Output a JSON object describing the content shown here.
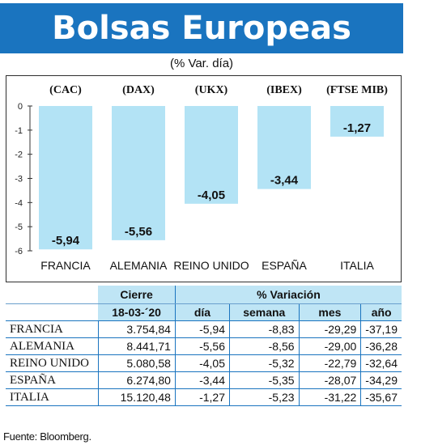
{
  "title": "Bolsas Europeas",
  "subtitle": "(% Var. día)",
  "chart_data": {
    "type": "bar",
    "categories": [
      "FRANCIA",
      "ALEMANIA",
      "REINO UNIDO",
      "ESPAÑA",
      "ITALIA"
    ],
    "index_labels": [
      "(CAC)",
      "(DAX)",
      "(UKX)",
      "(IBEX)",
      "(FTSE MIB)"
    ],
    "values": [
      -5.94,
      -5.56,
      -4.05,
      -3.44,
      -1.27
    ],
    "value_labels": [
      "-5,94",
      "-5,56",
      "-4,05",
      "-3,44",
      "-1,27"
    ],
    "ylim": [
      -6,
      0
    ],
    "yticks": [
      0,
      -1,
      -2,
      -3,
      -4,
      -5,
      -6
    ],
    "ytick_labels": [
      "0",
      "-1",
      "-2",
      "-3",
      "-4",
      "-5",
      "-6"
    ],
    "bar_color": "#b3e3f5"
  },
  "table": {
    "header_cierre": "Cierre",
    "header_variacion": "% Variación",
    "header_date": "18-03-´20",
    "header_columns": [
      "día",
      "semana",
      "mes",
      "año"
    ],
    "rows": [
      {
        "country": "FRANCIA",
        "cierre": "3.754,84",
        "dia": "-5,94",
        "semana": "-8,83",
        "mes": "-29,29",
        "anio": "-37,19"
      },
      {
        "country": "ALEMANIA",
        "cierre": "8.441,71",
        "dia": "-5,56",
        "semana": "-8,56",
        "mes": "-29,00",
        "anio": "-36,28"
      },
      {
        "country": "REINO UNIDO",
        "cierre": "5.080,58",
        "dia": "-4,05",
        "semana": "-5,32",
        "mes": "-22,79",
        "anio": "-32,64"
      },
      {
        "country": "ESPAÑA",
        "cierre": "6.274,80",
        "dia": "-3,44",
        "semana": "-5,35",
        "mes": "-28,07",
        "anio": "-34,29"
      },
      {
        "country": "ITALIA",
        "cierre": "15.120,48",
        "dia": "-1,27",
        "semana": "-5,23",
        "mes": "-31,22",
        "anio": "-35,67"
      }
    ]
  },
  "source": "Fuente: Bloomberg.",
  "colors": {
    "banner": "#1a74bf",
    "table_header": "#bfe5f5",
    "rule": "#1a74bf"
  }
}
